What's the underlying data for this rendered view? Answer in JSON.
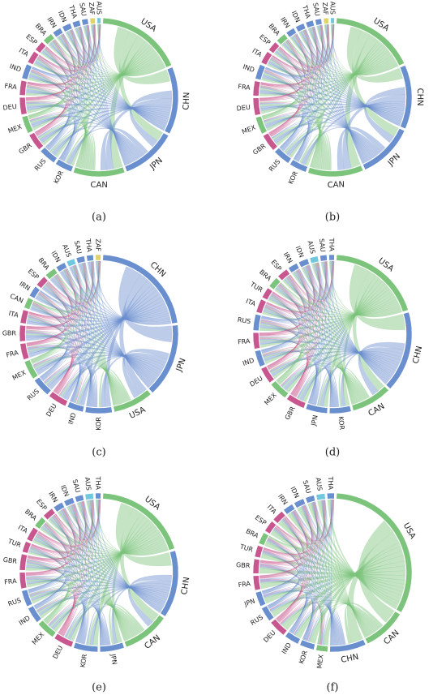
{
  "panels": [
    {
      "caption": "(a)",
      "nodes": [
        {
          "label": "USA",
          "color": "#7cc47c",
          "weight": 70
        },
        {
          "label": "CHN",
          "color": "#6a8fcf",
          "weight": 55
        },
        {
          "label": "JPN",
          "color": "#6a8fcf",
          "weight": 45
        },
        {
          "label": "CAN",
          "color": "#7cc47c",
          "weight": 42
        },
        {
          "label": "KOR",
          "color": "#6a8fcf",
          "weight": 14
        },
        {
          "label": "RUS",
          "color": "#6a8fcf",
          "weight": 14
        },
        {
          "label": "GBR",
          "color": "#c9578f",
          "weight": 14
        },
        {
          "label": "MEX",
          "color": "#7cc47c",
          "weight": 14
        },
        {
          "label": "DEU",
          "color": "#c9578f",
          "weight": 14
        },
        {
          "label": "FRA",
          "color": "#c9578f",
          "weight": 12
        },
        {
          "label": "IND",
          "color": "#6a8fcf",
          "weight": 12
        },
        {
          "label": "ITA",
          "color": "#c9578f",
          "weight": 10
        },
        {
          "label": "ESP",
          "color": "#c9578f",
          "weight": 8
        },
        {
          "label": "BRA",
          "color": "#7cc47c",
          "weight": 8
        },
        {
          "label": "IRN",
          "color": "#6a8fcf",
          "weight": 7
        },
        {
          "label": "IDN",
          "color": "#6a8fcf",
          "weight": 7
        },
        {
          "label": "THA",
          "color": "#6a8fcf",
          "weight": 6
        },
        {
          "label": "SAU",
          "color": "#6a8fcf",
          "weight": 5
        },
        {
          "label": "ZAF",
          "color": "#e0d36a",
          "weight": 4
        },
        {
          "label": "AUS",
          "color": "#6fc8dd",
          "weight": 3
        }
      ]
    },
    {
      "caption": "(b)",
      "nodes": [
        {
          "label": "USA",
          "color": "#7cc47c",
          "weight": 68
        },
        {
          "label": "CHN",
          "color": "#6a8fcf",
          "weight": 52
        },
        {
          "label": "JPN",
          "color": "#6a8fcf",
          "weight": 45
        },
        {
          "label": "CAN",
          "color": "#7cc47c",
          "weight": 45
        },
        {
          "label": "KOR",
          "color": "#6a8fcf",
          "weight": 14
        },
        {
          "label": "RUS",
          "color": "#6a8fcf",
          "weight": 14
        },
        {
          "label": "GBR",
          "color": "#c9578f",
          "weight": 14
        },
        {
          "label": "MEX",
          "color": "#7cc47c",
          "weight": 14
        },
        {
          "label": "DEU",
          "color": "#c9578f",
          "weight": 14
        },
        {
          "label": "FRA",
          "color": "#c9578f",
          "weight": 12
        },
        {
          "label": "IND",
          "color": "#6a8fcf",
          "weight": 12
        },
        {
          "label": "ITA",
          "color": "#c9578f",
          "weight": 10
        },
        {
          "label": "ESP",
          "color": "#c9578f",
          "weight": 8
        },
        {
          "label": "BRA",
          "color": "#7cc47c",
          "weight": 8
        },
        {
          "label": "IRN",
          "color": "#6a8fcf",
          "weight": 7
        },
        {
          "label": "IDN",
          "color": "#6a8fcf",
          "weight": 7
        },
        {
          "label": "THA",
          "color": "#6a8fcf",
          "weight": 6
        },
        {
          "label": "SAU",
          "color": "#6a8fcf",
          "weight": 5
        },
        {
          "label": "ZAF",
          "color": "#e0d36a",
          "weight": 4
        },
        {
          "label": "AUS",
          "color": "#6fc8dd",
          "weight": 3
        }
      ]
    },
    {
      "caption": "(c)",
      "nodes": [
        {
          "label": "CHN",
          "color": "#6a8fcf",
          "weight": 80
        },
        {
          "label": "JPN",
          "color": "#6a8fcf",
          "weight": 55
        },
        {
          "label": "USA",
          "color": "#7cc47c",
          "weight": 30
        },
        {
          "label": "KOR",
          "color": "#6a8fcf",
          "weight": 20
        },
        {
          "label": "IND",
          "color": "#6a8fcf",
          "weight": 12
        },
        {
          "label": "DEU",
          "color": "#c9578f",
          "weight": 14
        },
        {
          "label": "RUS",
          "color": "#6a8fcf",
          "weight": 14
        },
        {
          "label": "MEX",
          "color": "#7cc47c",
          "weight": 14
        },
        {
          "label": "FRA",
          "color": "#c9578f",
          "weight": 12
        },
        {
          "label": "GBR",
          "color": "#c9578f",
          "weight": 12
        },
        {
          "label": "ITA",
          "color": "#c9578f",
          "weight": 10
        },
        {
          "label": "CAN",
          "color": "#7cc47c",
          "weight": 8
        },
        {
          "label": "IRN",
          "color": "#6a8fcf",
          "weight": 8
        },
        {
          "label": "ESP",
          "color": "#c9578f",
          "weight": 8
        },
        {
          "label": "BRA",
          "color": "#7cc47c",
          "weight": 8
        },
        {
          "label": "IDN",
          "color": "#6a8fcf",
          "weight": 7
        },
        {
          "label": "AUS",
          "color": "#6fc8dd",
          "weight": 6
        },
        {
          "label": "SAU",
          "color": "#6a8fcf",
          "weight": 6
        },
        {
          "label": "THA",
          "color": "#6a8fcf",
          "weight": 5
        },
        {
          "label": "ZAF",
          "color": "#e0d36a",
          "weight": 4
        }
      ]
    },
    {
      "caption": "(d)",
      "nodes": [
        {
          "label": "USA",
          "color": "#7cc47c",
          "weight": 70
        },
        {
          "label": "CHN",
          "color": "#6a8fcf",
          "weight": 60
        },
        {
          "label": "CAN",
          "color": "#7cc47c",
          "weight": 30
        },
        {
          "label": "KOR",
          "color": "#6a8fcf",
          "weight": 16
        },
        {
          "label": "JPN",
          "color": "#6a8fcf",
          "weight": 16
        },
        {
          "label": "GBR",
          "color": "#c9578f",
          "weight": 14
        },
        {
          "label": "MEX",
          "color": "#7cc47c",
          "weight": 14
        },
        {
          "label": "DEU",
          "color": "#c9578f",
          "weight": 12
        },
        {
          "label": "IND",
          "color": "#6a8fcf",
          "weight": 12
        },
        {
          "label": "FRA",
          "color": "#c9578f",
          "weight": 12
        },
        {
          "label": "RUS",
          "color": "#6a8fcf",
          "weight": 12
        },
        {
          "label": "ITA",
          "color": "#c9578f",
          "weight": 10
        },
        {
          "label": "TUR",
          "color": "#c9578f",
          "weight": 8
        },
        {
          "label": "BRA",
          "color": "#7cc47c",
          "weight": 8
        },
        {
          "label": "ESP",
          "color": "#c9578f",
          "weight": 8
        },
        {
          "label": "IRN",
          "color": "#6a8fcf",
          "weight": 7
        },
        {
          "label": "IDN",
          "color": "#6a8fcf",
          "weight": 7
        },
        {
          "label": "AUS",
          "color": "#6fc8dd",
          "weight": 6
        },
        {
          "label": "SAU",
          "color": "#6a8fcf",
          "weight": 5
        },
        {
          "label": "THA",
          "color": "#6a8fcf",
          "weight": 4
        }
      ]
    },
    {
      "caption": "(e)",
      "nodes": [
        {
          "label": "USA",
          "color": "#7cc47c",
          "weight": 70
        },
        {
          "label": "CHN",
          "color": "#6a8fcf",
          "weight": 50
        },
        {
          "label": "CAN",
          "color": "#7cc47c",
          "weight": 35
        },
        {
          "label": "JPN",
          "color": "#6a8fcf",
          "weight": 18
        },
        {
          "label": "KOR",
          "color": "#6a8fcf",
          "weight": 18
        },
        {
          "label": "DEU",
          "color": "#c9578f",
          "weight": 14
        },
        {
          "label": "MEX",
          "color": "#7cc47c",
          "weight": 14
        },
        {
          "label": "IND",
          "color": "#6a8fcf",
          "weight": 12
        },
        {
          "label": "RUS",
          "color": "#6a8fcf",
          "weight": 12
        },
        {
          "label": "FRA",
          "color": "#c9578f",
          "weight": 12
        },
        {
          "label": "GBR",
          "color": "#c9578f",
          "weight": 12
        },
        {
          "label": "TUR",
          "color": "#c9578f",
          "weight": 8
        },
        {
          "label": "ITA",
          "color": "#c9578f",
          "weight": 10
        },
        {
          "label": "BRA",
          "color": "#7cc47c",
          "weight": 8
        },
        {
          "label": "ESP",
          "color": "#c9578f",
          "weight": 8
        },
        {
          "label": "IRN",
          "color": "#6a8fcf",
          "weight": 7
        },
        {
          "label": "IDN",
          "color": "#6a8fcf",
          "weight": 7
        },
        {
          "label": "SAU",
          "color": "#6a8fcf",
          "weight": 6
        },
        {
          "label": "AUS",
          "color": "#6fc8dd",
          "weight": 6
        },
        {
          "label": "THA",
          "color": "#6a8fcf",
          "weight": 4
        }
      ]
    },
    {
      "caption": "(f)",
      "nodes": [
        {
          "label": "USA",
          "color": "#7cc47c",
          "weight": 110
        },
        {
          "label": "CAN",
          "color": "#7cc47c",
          "weight": 30
        },
        {
          "label": "CHN",
          "color": "#6a8fcf",
          "weight": 25
        },
        {
          "label": "MEX",
          "color": "#7cc47c",
          "weight": 8
        },
        {
          "label": "KOR",
          "color": "#6a8fcf",
          "weight": 10
        },
        {
          "label": "IND",
          "color": "#6a8fcf",
          "weight": 10
        },
        {
          "label": "DEU",
          "color": "#c9578f",
          "weight": 12
        },
        {
          "label": "RUS",
          "color": "#6a8fcf",
          "weight": 10
        },
        {
          "label": "JPN",
          "color": "#6a8fcf",
          "weight": 10
        },
        {
          "label": "FRA",
          "color": "#c9578f",
          "weight": 10
        },
        {
          "label": "GBR",
          "color": "#c9578f",
          "weight": 10
        },
        {
          "label": "TUR",
          "color": "#c9578f",
          "weight": 8
        },
        {
          "label": "BRA",
          "color": "#7cc47c",
          "weight": 8
        },
        {
          "label": "ESP",
          "color": "#c9578f",
          "weight": 8
        },
        {
          "label": "ITA",
          "color": "#c9578f",
          "weight": 8
        },
        {
          "label": "IRN",
          "color": "#6a8fcf",
          "weight": 7
        },
        {
          "label": "IDN",
          "color": "#6a8fcf",
          "weight": 7
        },
        {
          "label": "SAU",
          "color": "#6a8fcf",
          "weight": 6
        },
        {
          "label": "AUS",
          "color": "#6fc8dd",
          "weight": 6
        },
        {
          "label": "THA",
          "color": "#6a8fcf",
          "weight": 5
        }
      ]
    }
  ]
}
